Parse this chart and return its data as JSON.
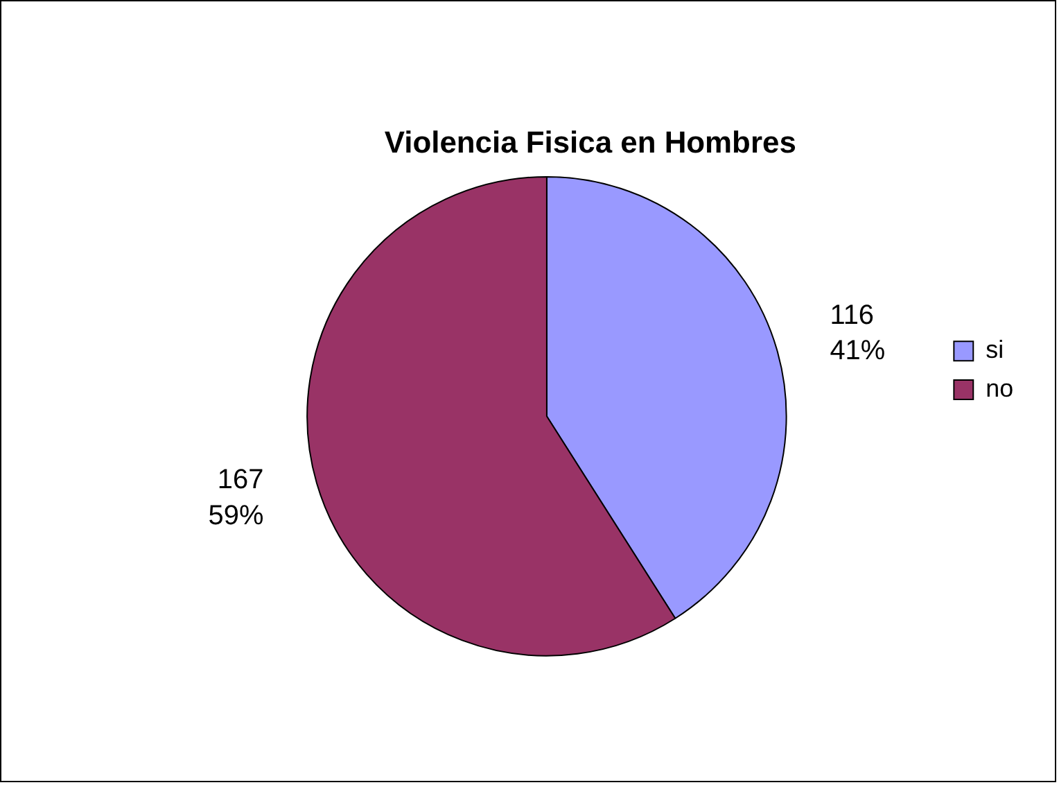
{
  "chart_data": {
    "type": "pie",
    "title": "Violencia Fisica en Hombres",
    "categories": [
      "si",
      "no"
    ],
    "values": [
      116,
      167
    ],
    "colors": [
      "#9999ff",
      "#993366"
    ],
    "value_labels": [
      "116\n41%",
      "167\n59%"
    ],
    "legend": "right"
  }
}
